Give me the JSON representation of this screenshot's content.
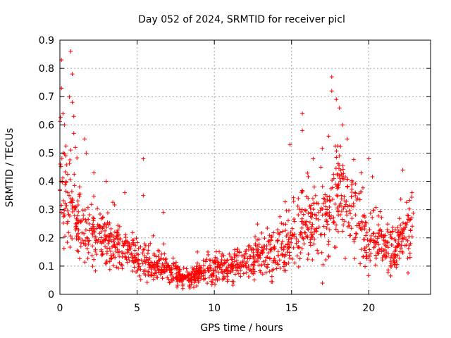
{
  "chart_data": {
    "type": "scatter",
    "title": "Day 052 of 2024, SRMTID for receiver picl",
    "xlabel": "GPS time / hours",
    "ylabel": "SRMTID / TECUs",
    "xlim": [
      0,
      24
    ],
    "ylim": [
      0,
      0.9
    ],
    "xticks": [
      0,
      5,
      10,
      15,
      20
    ],
    "xtick_labels": [
      "0",
      "5",
      "10",
      "15",
      "20"
    ],
    "yticks": [
      0,
      0.1,
      0.2,
      0.3,
      0.4,
      0.5,
      0.6,
      0.7,
      0.8,
      0.9
    ],
    "ytick_labels": [
      "0",
      "0.1",
      "0.2",
      "0.3",
      "0.4",
      "0.5",
      "0.6",
      "0.7",
      "0.8",
      "0.9"
    ],
    "grid": true,
    "marker": "plus",
    "series_color": "#ff0000",
    "series": [
      {
        "name": "SRMTID",
        "envelope": {
          "x": [
            0.0,
            0.3,
            0.6,
            1.0,
            1.5,
            2.0,
            2.5,
            3.0,
            3.5,
            4.0,
            4.5,
            5.0,
            5.5,
            6.0,
            6.5,
            7.0,
            7.5,
            8.0,
            8.5,
            9.0,
            9.5,
            10.0,
            10.5,
            11.0,
            11.5,
            12.0,
            12.5,
            13.0,
            13.5,
            14.0,
            14.5,
            15.0,
            15.5,
            16.0,
            16.5,
            17.0,
            17.5,
            18.0,
            18.5,
            19.0,
            19.5,
            20.0,
            20.5,
            21.0,
            21.5,
            22.0,
            22.5,
            22.9
          ],
          "y": [
            0.45,
            0.38,
            0.32,
            0.27,
            0.22,
            0.21,
            0.2,
            0.19,
            0.18,
            0.16,
            0.15,
            0.13,
            0.11,
            0.1,
            0.1,
            0.09,
            0.08,
            0.05,
            0.06,
            0.08,
            0.09,
            0.1,
            0.1,
            0.1,
            0.1,
            0.12,
            0.13,
            0.14,
            0.15,
            0.15,
            0.16,
            0.2,
            0.24,
            0.26,
            0.25,
            0.24,
            0.3,
            0.36,
            0.33,
            0.27,
            0.24,
            0.2,
            0.19,
            0.17,
            0.16,
            0.17,
            0.2,
            0.22
          ]
        },
        "spikes": [
          {
            "x": 0.1,
            "y": 0.83
          },
          {
            "x": 0.1,
            "y": 0.73
          },
          {
            "x": 0.2,
            "y": 0.64
          },
          {
            "x": 0.3,
            "y": 0.6
          },
          {
            "x": 0.7,
            "y": 0.86
          },
          {
            "x": 0.8,
            "y": 0.78
          },
          {
            "x": 0.8,
            "y": 0.68
          },
          {
            "x": 0.9,
            "y": 0.63
          },
          {
            "x": 0.9,
            "y": 0.57
          },
          {
            "x": 1.0,
            "y": 0.52
          },
          {
            "x": 1.6,
            "y": 0.55
          },
          {
            "x": 1.7,
            "y": 0.5
          },
          {
            "x": 2.2,
            "y": 0.43
          },
          {
            "x": 3.0,
            "y": 0.4
          },
          {
            "x": 4.2,
            "y": 0.36
          },
          {
            "x": 5.4,
            "y": 0.48
          },
          {
            "x": 5.4,
            "y": 0.35
          },
          {
            "x": 6.7,
            "y": 0.29
          },
          {
            "x": 14.9,
            "y": 0.53
          },
          {
            "x": 15.7,
            "y": 0.64
          },
          {
            "x": 15.7,
            "y": 0.58
          },
          {
            "x": 16.4,
            "y": 0.48
          },
          {
            "x": 16.9,
            "y": 0.45
          },
          {
            "x": 17.4,
            "y": 0.56
          },
          {
            "x": 17.6,
            "y": 0.77
          },
          {
            "x": 17.6,
            "y": 0.72
          },
          {
            "x": 17.9,
            "y": 0.69
          },
          {
            "x": 18.1,
            "y": 0.66
          },
          {
            "x": 18.3,
            "y": 0.6
          },
          {
            "x": 18.6,
            "y": 0.55
          },
          {
            "x": 18.1,
            "y": 0.49
          },
          {
            "x": 19.5,
            "y": 0.43
          },
          {
            "x": 20.0,
            "y": 0.48
          },
          {
            "x": 22.2,
            "y": 0.44
          },
          {
            "x": 22.8,
            "y": 0.36
          },
          {
            "x": 17.0,
            "y": 0.04
          }
        ]
      }
    ]
  }
}
